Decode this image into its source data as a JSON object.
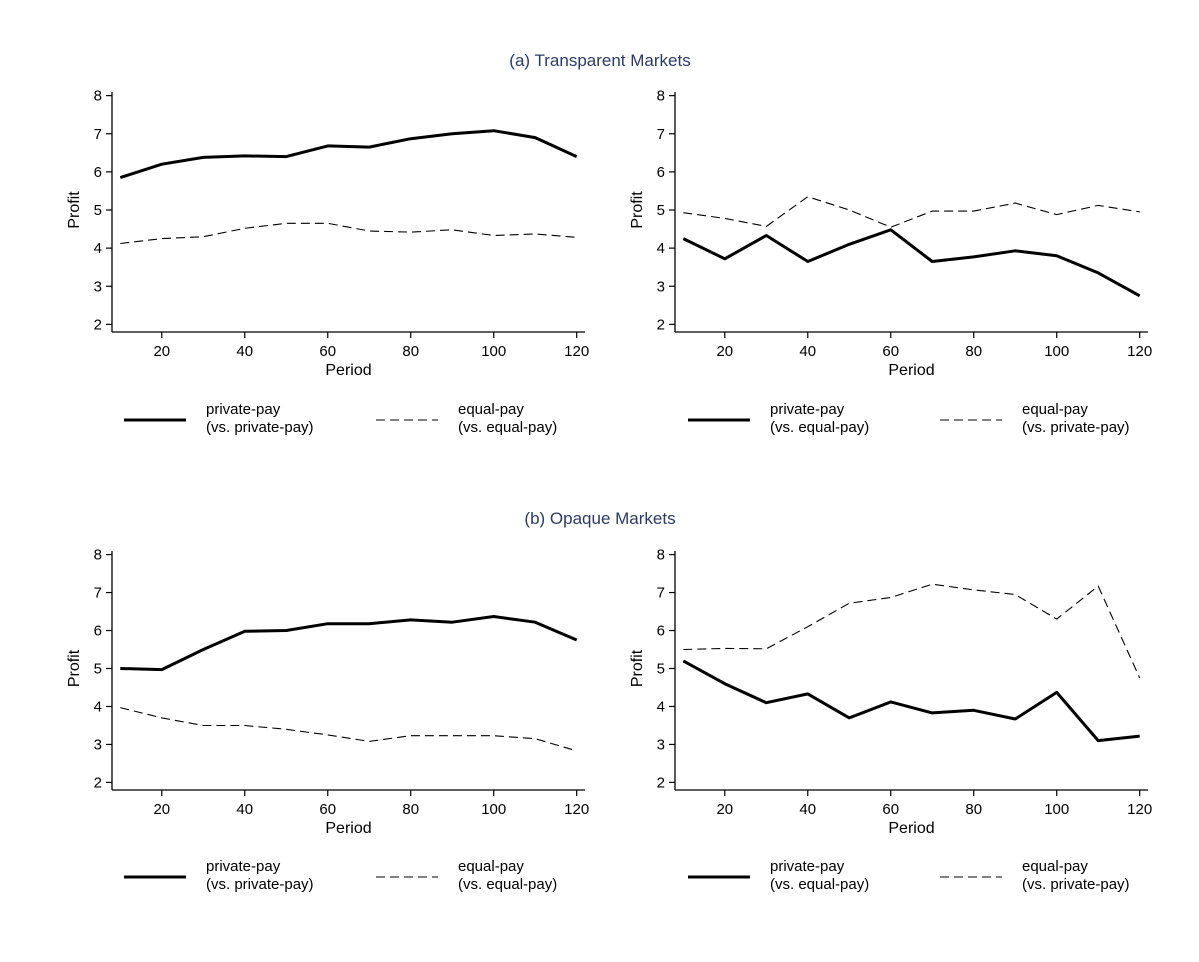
{
  "sections": [
    {
      "title": "(a) Transparent Markets",
      "title_color": "#2b3a67"
    },
    {
      "title": "(b) Opaque Markets",
      "title_color": "#2b3a67"
    }
  ],
  "chart_data": [
    {
      "type": "line",
      "section": 0,
      "xlabel": "Period",
      "ylabel": "Profit",
      "xlim": [
        8,
        122
      ],
      "ylim": [
        1.8,
        8.2
      ],
      "xticks": [
        20,
        40,
        60,
        80,
        100,
        120
      ],
      "yticks": [
        2,
        3,
        4,
        5,
        6,
        7,
        8
      ],
      "grid": false,
      "x": [
        10,
        20,
        30,
        40,
        50,
        60,
        70,
        80,
        90,
        100,
        110,
        120
      ],
      "series": [
        {
          "name": "private-pay\n(vs. private-pay)",
          "style": "solid",
          "values": [
            5.85,
            6.2,
            6.38,
            6.42,
            6.4,
            6.68,
            6.65,
            6.87,
            7.0,
            7.08,
            6.9,
            6.4
          ]
        },
        {
          "name": "equal-pay\n(vs. equal-pay)",
          "style": "dashed",
          "values": [
            4.12,
            4.25,
            4.3,
            4.52,
            4.65,
            4.65,
            4.45,
            4.42,
            4.48,
            4.33,
            4.37,
            4.28
          ]
        }
      ]
    },
    {
      "type": "line",
      "section": 0,
      "xlabel": "Period",
      "ylabel": "Profit",
      "xlim": [
        8,
        122
      ],
      "ylim": [
        1.8,
        8.2
      ],
      "xticks": [
        20,
        40,
        60,
        80,
        100,
        120
      ],
      "yticks": [
        2,
        3,
        4,
        5,
        6,
        7,
        8
      ],
      "grid": false,
      "x": [
        10,
        20,
        30,
        40,
        50,
        60,
        70,
        80,
        90,
        100,
        110,
        120
      ],
      "series": [
        {
          "name": "private-pay\n(vs. equal-pay)",
          "style": "solid",
          "values": [
            4.25,
            3.72,
            4.33,
            3.65,
            4.1,
            4.48,
            3.65,
            3.77,
            3.93,
            3.8,
            3.35,
            2.75
          ]
        },
        {
          "name": "equal-pay\n(vs. private-pay)",
          "style": "dashed",
          "values": [
            4.93,
            4.78,
            4.57,
            5.35,
            5.0,
            4.55,
            4.97,
            4.97,
            5.18,
            4.88,
            5.12,
            4.95
          ]
        }
      ]
    },
    {
      "type": "line",
      "section": 1,
      "xlabel": "Period",
      "ylabel": "Profit",
      "xlim": [
        8,
        122
      ],
      "ylim": [
        1.8,
        8.2
      ],
      "xticks": [
        20,
        40,
        60,
        80,
        100,
        120
      ],
      "yticks": [
        2,
        3,
        4,
        5,
        6,
        7,
        8
      ],
      "grid": false,
      "x": [
        10,
        20,
        30,
        40,
        50,
        60,
        70,
        80,
        90,
        100,
        110,
        120
      ],
      "series": [
        {
          "name": "private-pay\n(vs. private-pay)",
          "style": "solid",
          "values": [
            5.0,
            4.97,
            5.5,
            5.98,
            6.0,
            6.18,
            6.18,
            6.28,
            6.22,
            6.37,
            6.22,
            5.75
          ]
        },
        {
          "name": "equal-pay\n(vs. equal-pay)",
          "style": "dashed",
          "values": [
            3.97,
            3.7,
            3.5,
            3.5,
            3.4,
            3.25,
            3.08,
            3.23,
            3.23,
            3.23,
            3.15,
            2.83
          ]
        }
      ]
    },
    {
      "type": "line",
      "section": 1,
      "xlabel": "Period",
      "ylabel": "Profit",
      "xlim": [
        8,
        122
      ],
      "ylim": [
        1.8,
        8.2
      ],
      "xticks": [
        20,
        40,
        60,
        80,
        100,
        120
      ],
      "yticks": [
        2,
        3,
        4,
        5,
        6,
        7,
        8
      ],
      "grid": false,
      "x": [
        10,
        20,
        30,
        40,
        50,
        60,
        70,
        80,
        90,
        100,
        110,
        120
      ],
      "series": [
        {
          "name": "private-pay\n(vs. equal-pay)",
          "style": "solid",
          "values": [
            5.2,
            4.6,
            4.1,
            4.33,
            3.7,
            4.12,
            3.83,
            3.9,
            3.67,
            4.37,
            3.1,
            3.22
          ]
        },
        {
          "name": "equal-pay\n(vs. private-pay)",
          "style": "dashed",
          "values": [
            5.5,
            5.53,
            5.52,
            6.1,
            6.72,
            6.87,
            7.22,
            7.07,
            6.95,
            6.3,
            7.17,
            4.75
          ]
        }
      ]
    }
  ]
}
